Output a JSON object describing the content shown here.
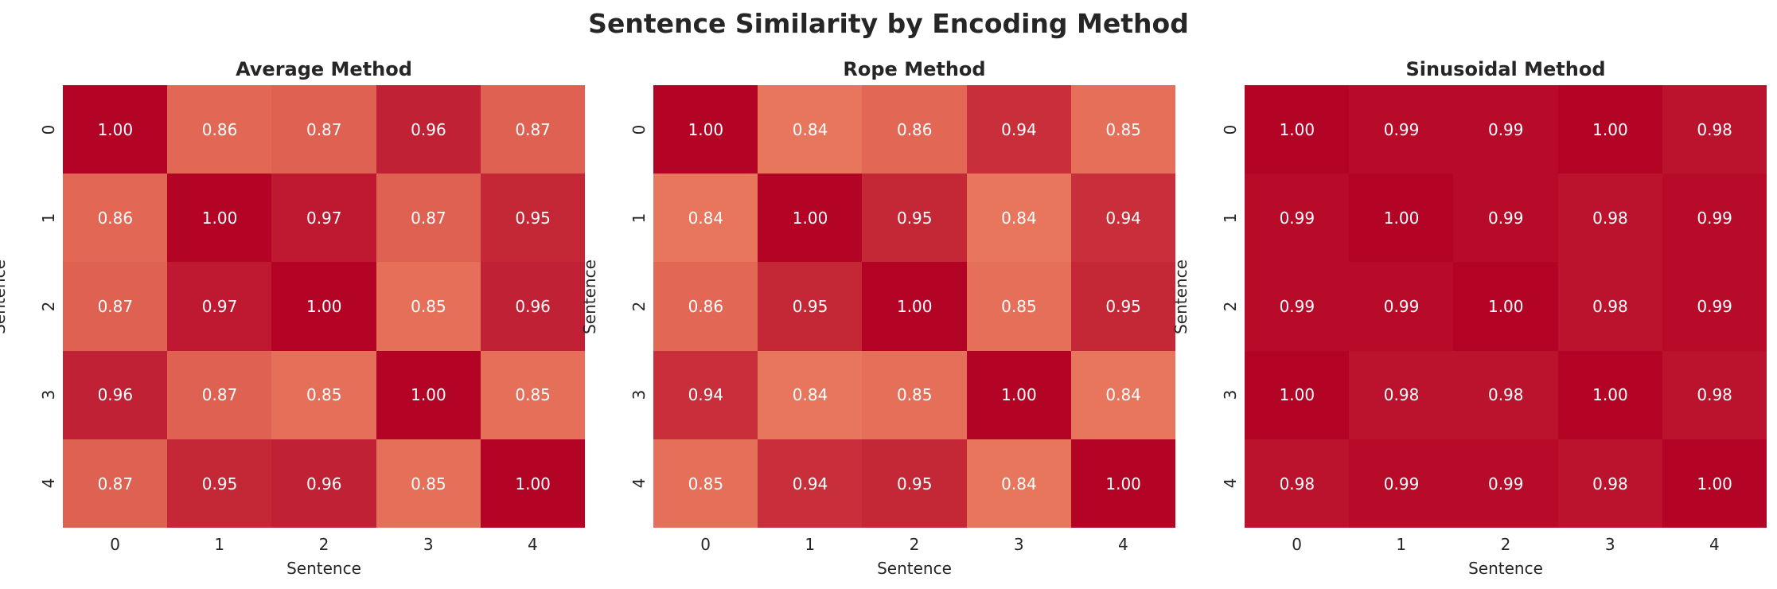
{
  "title": "Sentence Similarity by Encoding Method",
  "chart_data": [
    {
      "type": "heatmap",
      "title": "Average Method",
      "xlabel": "Sentence",
      "ylabel": "Sentence",
      "x_ticks": [
        "0",
        "1",
        "2",
        "3",
        "4"
      ],
      "y_ticks": [
        "0",
        "1",
        "2",
        "3",
        "4"
      ],
      "colormap": "coolwarm",
      "matrix": [
        [
          1.0,
          0.86,
          0.87,
          0.96,
          0.87
        ],
        [
          0.86,
          1.0,
          0.97,
          0.87,
          0.95
        ],
        [
          0.87,
          0.97,
          1.0,
          0.85,
          0.96
        ],
        [
          0.96,
          0.87,
          0.85,
          1.0,
          0.85
        ],
        [
          0.87,
          0.95,
          0.96,
          0.85,
          1.0
        ]
      ],
      "labels": [
        [
          "1.00",
          "0.86",
          "0.87",
          "0.96",
          "0.87"
        ],
        [
          "0.86",
          "1.00",
          "0.97",
          "0.87",
          "0.95"
        ],
        [
          "0.87",
          "0.97",
          "1.00",
          "0.85",
          "0.96"
        ],
        [
          "0.96",
          "0.87",
          "0.85",
          "1.00",
          "0.85"
        ],
        [
          "0.87",
          "0.95",
          "0.96",
          "0.85",
          "1.00"
        ]
      ]
    },
    {
      "type": "heatmap",
      "title": "Rope Method",
      "xlabel": "Sentence",
      "ylabel": "Sentence",
      "x_ticks": [
        "0",
        "1",
        "2",
        "3",
        "4"
      ],
      "y_ticks": [
        "0",
        "1",
        "2",
        "3",
        "4"
      ],
      "colormap": "coolwarm",
      "matrix": [
        [
          1.0,
          0.84,
          0.86,
          0.94,
          0.85
        ],
        [
          0.84,
          1.0,
          0.95,
          0.84,
          0.94
        ],
        [
          0.86,
          0.95,
          1.0,
          0.85,
          0.95
        ],
        [
          0.94,
          0.84,
          0.85,
          1.0,
          0.84
        ],
        [
          0.85,
          0.94,
          0.95,
          0.84,
          1.0
        ]
      ],
      "labels": [
        [
          "1.00",
          "0.84",
          "0.86",
          "0.94",
          "0.85"
        ],
        [
          "0.84",
          "1.00",
          "0.95",
          "0.84",
          "0.94"
        ],
        [
          "0.86",
          "0.95",
          "1.00",
          "0.85",
          "0.95"
        ],
        [
          "0.94",
          "0.84",
          "0.85",
          "1.00",
          "0.84"
        ],
        [
          "0.85",
          "0.94",
          "0.95",
          "0.84",
          "1.00"
        ]
      ]
    },
    {
      "type": "heatmap",
      "title": "Sinusoidal Method",
      "xlabel": "Sentence",
      "ylabel": "Sentence",
      "x_ticks": [
        "0",
        "1",
        "2",
        "3",
        "4"
      ],
      "y_ticks": [
        "0",
        "1",
        "2",
        "3",
        "4"
      ],
      "colormap": "coolwarm",
      "matrix": [
        [
          1.0,
          0.99,
          0.99,
          1.0,
          0.98
        ],
        [
          0.99,
          1.0,
          0.99,
          0.98,
          0.99
        ],
        [
          0.99,
          0.99,
          1.0,
          0.98,
          0.99
        ],
        [
          1.0,
          0.98,
          0.98,
          1.0,
          0.98
        ],
        [
          0.98,
          0.99,
          0.99,
          0.98,
          1.0
        ]
      ],
      "labels": [
        [
          "1.00",
          "0.99",
          "0.99",
          "1.00",
          "0.98"
        ],
        [
          "0.99",
          "1.00",
          "0.99",
          "0.98",
          "0.99"
        ],
        [
          "0.99",
          "0.99",
          "1.00",
          "0.98",
          "0.99"
        ],
        [
          "1.00",
          "0.98",
          "0.98",
          "1.00",
          "0.98"
        ],
        [
          "0.98",
          "0.99",
          "0.99",
          "0.98",
          "1.00"
        ]
      ]
    }
  ]
}
